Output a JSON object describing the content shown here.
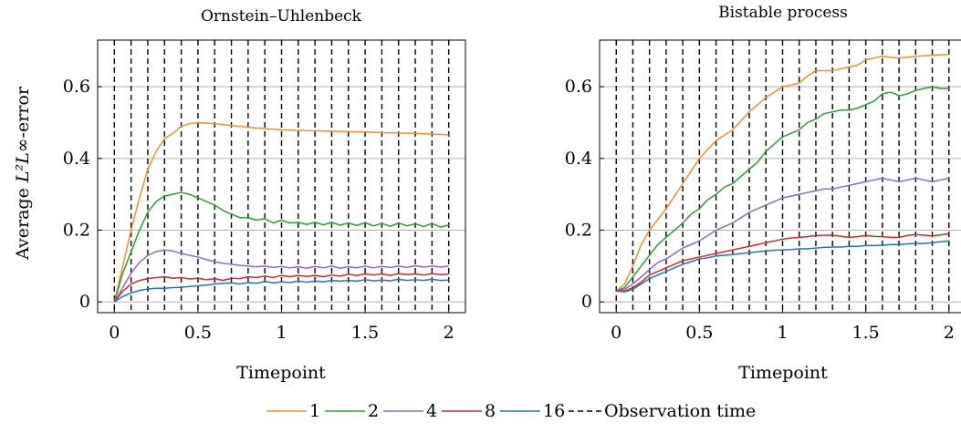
{
  "legend": {
    "items": [
      {
        "label": "1",
        "color": "#f28e2b"
      },
      {
        "label": "2",
        "color": "#2ca02c"
      },
      {
        "label": "4",
        "color": "#9467bd"
      },
      {
        "label": "8",
        "color": "#d62728"
      },
      {
        "label": "16",
        "color": "#1f77b4"
      },
      {
        "label": "Observation time",
        "color": "#000000",
        "style": "dashed"
      }
    ]
  },
  "chart_data": [
    {
      "type": "line",
      "title": "Ornstein–Uhlenbeck",
      "xlabel": "Timepoint",
      "ylabel_prefix": "Average ",
      "ylabel_math": "L²L∞",
      "ylabel_suffix": "-error",
      "xlim": [
        -0.1,
        2.1
      ],
      "ylim": [
        -0.03,
        0.73
      ],
      "xticks": [
        0,
        0.5,
        1,
        1.5,
        2
      ],
      "xtick_labels": [
        "0",
        "0.5",
        "1",
        "1.5",
        "2"
      ],
      "yticks": [
        0,
        0.2,
        0.4,
        0.6
      ],
      "ytick_labels": [
        "0",
        "0.2",
        "0.4",
        "0.6"
      ],
      "grid": "horizontal",
      "observation_times": [
        0,
        0.1,
        0.2,
        0.3,
        0.4,
        0.5,
        0.6,
        0.7,
        0.8,
        0.9,
        1.0,
        1.1,
        1.2,
        1.3,
        1.4,
        1.5,
        1.6,
        1.7,
        1.8,
        1.9,
        2.0
      ],
      "series": [
        {
          "name": "1",
          "color": "#f28e2b",
          "x": [
            0,
            0.05,
            0.1,
            0.15,
            0.2,
            0.25,
            0.3,
            0.35,
            0.4,
            0.45,
            0.5,
            0.6,
            0.7,
            0.8,
            0.9,
            1.0,
            1.1,
            1.2,
            1.3,
            1.4,
            1.5,
            1.6,
            1.7,
            1.8,
            1.9,
            2.0
          ],
          "y": [
            0.0,
            0.1,
            0.2,
            0.29,
            0.37,
            0.42,
            0.455,
            0.47,
            0.49,
            0.497,
            0.5,
            0.497,
            0.492,
            0.487,
            0.483,
            0.48,
            0.478,
            0.477,
            0.476,
            0.475,
            0.474,
            0.472,
            0.471,
            0.47,
            0.468,
            0.466
          ]
        },
        {
          "name": "2",
          "color": "#2ca02c",
          "x": [
            0,
            0.05,
            0.1,
            0.15,
            0.2,
            0.25,
            0.3,
            0.35,
            0.4,
            0.45,
            0.5,
            0.55,
            0.6,
            0.65,
            0.7,
            0.75,
            0.8,
            0.85,
            0.9,
            0.95,
            1.0,
            1.05,
            1.1,
            1.15,
            1.2,
            1.25,
            1.3,
            1.35,
            1.4,
            1.45,
            1.5,
            1.55,
            1.6,
            1.65,
            1.7,
            1.75,
            1.8,
            1.85,
            1.9,
            1.95,
            2.0
          ],
          "y": [
            0.0,
            0.08,
            0.14,
            0.2,
            0.25,
            0.28,
            0.295,
            0.3,
            0.305,
            0.3,
            0.29,
            0.28,
            0.27,
            0.255,
            0.245,
            0.235,
            0.235,
            0.228,
            0.232,
            0.22,
            0.228,
            0.22,
            0.222,
            0.216,
            0.222,
            0.215,
            0.222,
            0.214,
            0.22,
            0.213,
            0.221,
            0.212,
            0.219,
            0.211,
            0.22,
            0.212,
            0.218,
            0.21,
            0.219,
            0.209,
            0.214
          ]
        },
        {
          "name": "4",
          "color": "#9467bd",
          "x": [
            0,
            0.05,
            0.1,
            0.15,
            0.2,
            0.25,
            0.3,
            0.35,
            0.4,
            0.45,
            0.5,
            0.55,
            0.6,
            0.65,
            0.7,
            0.75,
            0.8,
            0.85,
            0.9,
            0.95,
            1.0,
            1.05,
            1.1,
            1.15,
            1.2,
            1.25,
            1.3,
            1.35,
            1.4,
            1.45,
            1.5,
            1.55,
            1.6,
            1.65,
            1.7,
            1.75,
            1.8,
            1.85,
            1.9,
            1.95,
            2.0
          ],
          "y": [
            0.0,
            0.04,
            0.08,
            0.11,
            0.13,
            0.14,
            0.145,
            0.142,
            0.135,
            0.13,
            0.125,
            0.118,
            0.112,
            0.108,
            0.105,
            0.102,
            0.1,
            0.098,
            0.1,
            0.096,
            0.099,
            0.095,
            0.098,
            0.094,
            0.099,
            0.095,
            0.1,
            0.094,
            0.098,
            0.095,
            0.1,
            0.095,
            0.099,
            0.096,
            0.1,
            0.096,
            0.101,
            0.097,
            0.1,
            0.097,
            0.1
          ]
        },
        {
          "name": "8",
          "color": "#d62728",
          "x": [
            0,
            0.05,
            0.1,
            0.15,
            0.2,
            0.25,
            0.3,
            0.35,
            0.4,
            0.45,
            0.5,
            0.55,
            0.6,
            0.65,
            0.7,
            0.75,
            0.8,
            0.85,
            0.9,
            0.95,
            1.0,
            1.05,
            1.1,
            1.15,
            1.2,
            1.25,
            1.3,
            1.35,
            1.4,
            1.45,
            1.5,
            1.55,
            1.6,
            1.65,
            1.7,
            1.75,
            1.8,
            1.85,
            1.9,
            1.95,
            2.0
          ],
          "y": [
            0.0,
            0.03,
            0.05,
            0.06,
            0.065,
            0.068,
            0.07,
            0.066,
            0.068,
            0.064,
            0.066,
            0.062,
            0.065,
            0.06,
            0.066,
            0.065,
            0.07,
            0.068,
            0.072,
            0.068,
            0.074,
            0.07,
            0.074,
            0.071,
            0.074,
            0.07,
            0.075,
            0.072,
            0.077,
            0.074,
            0.078,
            0.075,
            0.078,
            0.074,
            0.079,
            0.076,
            0.078,
            0.075,
            0.079,
            0.076,
            0.077
          ]
        },
        {
          "name": "16",
          "color": "#1f77b4",
          "x": [
            0,
            0.05,
            0.1,
            0.15,
            0.2,
            0.25,
            0.3,
            0.35,
            0.4,
            0.45,
            0.5,
            0.55,
            0.6,
            0.65,
            0.7,
            0.75,
            0.8,
            0.85,
            0.9,
            0.95,
            1.0,
            1.05,
            1.1,
            1.15,
            1.2,
            1.25,
            1.3,
            1.35,
            1.4,
            1.45,
            1.5,
            1.55,
            1.6,
            1.65,
            1.7,
            1.75,
            1.8,
            1.85,
            1.9,
            1.95,
            2.0
          ],
          "y": [
            0.0,
            0.015,
            0.025,
            0.032,
            0.036,
            0.038,
            0.038,
            0.04,
            0.041,
            0.043,
            0.045,
            0.047,
            0.05,
            0.052,
            0.053,
            0.05,
            0.054,
            0.052,
            0.057,
            0.053,
            0.056,
            0.054,
            0.058,
            0.055,
            0.058,
            0.056,
            0.06,
            0.058,
            0.06,
            0.058,
            0.062,
            0.059,
            0.061,
            0.059,
            0.063,
            0.06,
            0.062,
            0.06,
            0.063,
            0.06,
            0.061
          ]
        }
      ]
    },
    {
      "type": "line",
      "title": "Bistable process",
      "xlabel": "Timepoint",
      "xlim": [
        -0.1,
        2.1
      ],
      "ylim": [
        -0.03,
        0.73
      ],
      "xticks": [
        0,
        0.5,
        1,
        1.5,
        2
      ],
      "xtick_labels": [
        "0",
        "0.5",
        "1",
        "1.5",
        "2"
      ],
      "yticks": [
        0,
        0.2,
        0.4,
        0.6
      ],
      "ytick_labels": [
        "0",
        "0.2",
        "0.4",
        "0.6"
      ],
      "grid": "horizontal",
      "observation_times": [
        0,
        0.1,
        0.2,
        0.3,
        0.4,
        0.5,
        0.6,
        0.7,
        0.8,
        0.9,
        1.0,
        1.1,
        1.2,
        1.3,
        1.4,
        1.5,
        1.6,
        1.7,
        1.8,
        1.9,
        2.0
      ],
      "series": [
        {
          "name": "1",
          "color": "#f28e2b",
          "x": [
            0,
            0.05,
            0.1,
            0.15,
            0.2,
            0.3,
            0.4,
            0.5,
            0.6,
            0.7,
            0.8,
            0.9,
            1.0,
            1.05,
            1.1,
            1.15,
            1.2,
            1.25,
            1.3,
            1.35,
            1.4,
            1.45,
            1.5,
            1.55,
            1.6,
            1.65,
            1.7,
            1.75,
            1.8,
            1.85,
            1.9,
            1.95,
            2.0
          ],
          "y": [
            0.03,
            0.05,
            0.1,
            0.16,
            0.2,
            0.26,
            0.33,
            0.4,
            0.45,
            0.48,
            0.53,
            0.57,
            0.6,
            0.605,
            0.61,
            0.63,
            0.645,
            0.645,
            0.645,
            0.65,
            0.655,
            0.66,
            0.675,
            0.68,
            0.685,
            0.682,
            0.68,
            0.682,
            0.685,
            0.686,
            0.688,
            0.689,
            0.69
          ]
        },
        {
          "name": "2",
          "color": "#2ca02c",
          "x": [
            0,
            0.05,
            0.1,
            0.15,
            0.2,
            0.25,
            0.3,
            0.35,
            0.4,
            0.45,
            0.5,
            0.55,
            0.6,
            0.65,
            0.7,
            0.75,
            0.8,
            0.85,
            0.9,
            0.95,
            1.0,
            1.05,
            1.1,
            1.15,
            1.2,
            1.25,
            1.3,
            1.35,
            1.4,
            1.45,
            1.5,
            1.55,
            1.6,
            1.65,
            1.7,
            1.75,
            1.8,
            1.85,
            1.9,
            1.95,
            2.0
          ],
          "y": [
            0.03,
            0.04,
            0.07,
            0.1,
            0.13,
            0.16,
            0.18,
            0.2,
            0.22,
            0.245,
            0.26,
            0.285,
            0.3,
            0.32,
            0.33,
            0.35,
            0.37,
            0.39,
            0.42,
            0.44,
            0.46,
            0.47,
            0.48,
            0.5,
            0.51,
            0.525,
            0.53,
            0.535,
            0.535,
            0.54,
            0.55,
            0.56,
            0.58,
            0.585,
            0.575,
            0.58,
            0.59,
            0.595,
            0.6,
            0.595,
            0.595
          ]
        },
        {
          "name": "4",
          "color": "#9467bd",
          "x": [
            0,
            0.05,
            0.1,
            0.15,
            0.2,
            0.25,
            0.3,
            0.35,
            0.4,
            0.45,
            0.5,
            0.55,
            0.6,
            0.65,
            0.7,
            0.75,
            0.8,
            0.85,
            0.9,
            0.95,
            1.0,
            1.05,
            1.1,
            1.15,
            1.2,
            1.25,
            1.3,
            1.35,
            1.4,
            1.45,
            1.5,
            1.55,
            1.6,
            1.65,
            1.7,
            1.75,
            1.8,
            1.85,
            1.9,
            1.95,
            2.0
          ],
          "y": [
            0.03,
            0.035,
            0.05,
            0.07,
            0.09,
            0.11,
            0.12,
            0.135,
            0.15,
            0.16,
            0.17,
            0.185,
            0.2,
            0.21,
            0.22,
            0.235,
            0.25,
            0.26,
            0.27,
            0.28,
            0.29,
            0.295,
            0.3,
            0.305,
            0.31,
            0.315,
            0.315,
            0.32,
            0.325,
            0.33,
            0.335,
            0.34,
            0.345,
            0.34,
            0.335,
            0.34,
            0.345,
            0.34,
            0.335,
            0.34,
            0.345
          ]
        },
        {
          "name": "8",
          "color": "#d62728",
          "x": [
            0,
            0.05,
            0.1,
            0.15,
            0.2,
            0.25,
            0.3,
            0.35,
            0.4,
            0.45,
            0.5,
            0.55,
            0.6,
            0.65,
            0.7,
            0.75,
            0.8,
            0.85,
            0.9,
            0.95,
            1.0,
            1.05,
            1.1,
            1.15,
            1.2,
            1.25,
            1.3,
            1.35,
            1.4,
            1.45,
            1.5,
            1.55,
            1.6,
            1.65,
            1.7,
            1.75,
            1.8,
            1.85,
            1.9,
            1.95,
            2.0
          ],
          "y": [
            0.03,
            0.03,
            0.04,
            0.055,
            0.075,
            0.085,
            0.095,
            0.105,
            0.115,
            0.12,
            0.125,
            0.13,
            0.135,
            0.14,
            0.145,
            0.15,
            0.155,
            0.16,
            0.165,
            0.17,
            0.175,
            0.178,
            0.18,
            0.182,
            0.185,
            0.186,
            0.186,
            0.183,
            0.18,
            0.182,
            0.185,
            0.183,
            0.182,
            0.18,
            0.18,
            0.185,
            0.188,
            0.186,
            0.184,
            0.187,
            0.19
          ]
        },
        {
          "name": "16",
          "color": "#1f77b4",
          "x": [
            0,
            0.05,
            0.1,
            0.15,
            0.2,
            0.25,
            0.3,
            0.35,
            0.4,
            0.45,
            0.5,
            0.55,
            0.6,
            0.65,
            0.7,
            0.75,
            0.8,
            0.85,
            0.9,
            0.95,
            1.0,
            1.05,
            1.1,
            1.15,
            1.2,
            1.25,
            1.3,
            1.35,
            1.4,
            1.45,
            1.5,
            1.55,
            1.6,
            1.65,
            1.7,
            1.75,
            1.8,
            1.85,
            1.9,
            1.95,
            2.0
          ],
          "y": [
            0.03,
            0.028,
            0.035,
            0.05,
            0.065,
            0.075,
            0.085,
            0.095,
            0.105,
            0.112,
            0.12,
            0.123,
            0.128,
            0.13,
            0.132,
            0.135,
            0.137,
            0.14,
            0.142,
            0.144,
            0.145,
            0.146,
            0.148,
            0.148,
            0.15,
            0.152,
            0.153,
            0.153,
            0.155,
            0.155,
            0.157,
            0.157,
            0.158,
            0.16,
            0.16,
            0.162,
            0.163,
            0.163,
            0.165,
            0.168,
            0.17
          ]
        }
      ]
    }
  ]
}
